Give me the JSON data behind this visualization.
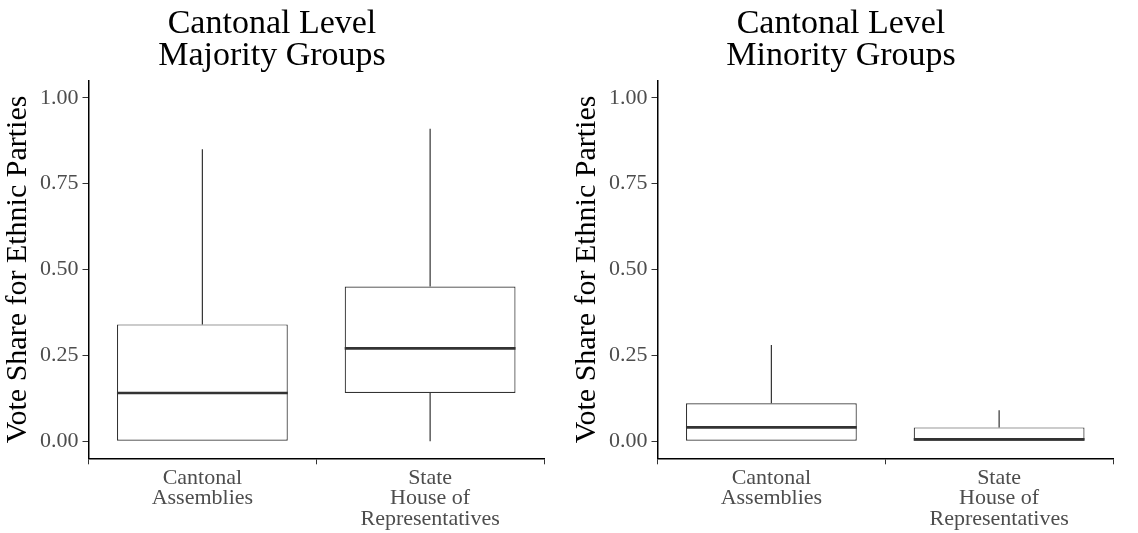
{
  "chart_data": [
    {
      "type": "box",
      "title": "Cantonal Level\nMajority Groups",
      "ylabel": "Vote Share for Ethnic Parties",
      "categories": [
        "Cantonal\nAssemblies",
        "State\nHouse of\nRepresentatives"
      ],
      "color": "#333333",
      "boxes": [
        {
          "low": 0,
          "q1": 0,
          "median": 0.14,
          "q3": 0.34,
          "high": 0.85
        },
        {
          "low": 0,
          "q1": 0.14,
          "median": 0.27,
          "q3": 0.45,
          "high": 0.91
        }
      ],
      "ylim": [
        -0.05,
        1.05
      ],
      "yticks": [
        {
          "value": 0,
          "label": "0.00"
        },
        {
          "value": 0.25,
          "label": "0.25"
        },
        {
          "value": 0.5,
          "label": "0.50"
        },
        {
          "value": 0.75,
          "label": "0.75"
        },
        {
          "value": 1,
          "label": "1.00"
        }
      ],
      "grid": false
    },
    {
      "type": "box",
      "title": "Cantonal Level\nMinority Groups",
      "ylabel": "Vote Share for Ethnic Parties",
      "categories": [
        "Cantonal\nAssemblies",
        "State\nHouse of\nRepresentatives"
      ],
      "color": "#333333",
      "boxes": [
        {
          "low": 0,
          "q1": 0,
          "median": 0.04,
          "q3": 0.11,
          "high": 0.28
        },
        {
          "low": 0,
          "q1": 0,
          "median": 0.005,
          "q3": 0.04,
          "high": 0.09
        }
      ],
      "ylim": [
        -0.05,
        1.05
      ],
      "yticks": [
        {
          "value": 0,
          "label": "0.00"
        },
        {
          "value": 0.25,
          "label": "0.25"
        },
        {
          "value": 0.5,
          "label": "0.50"
        },
        {
          "value": 0.75,
          "label": "0.75"
        },
        {
          "value": 1,
          "label": "1.00"
        }
      ],
      "grid": false
    }
  ]
}
